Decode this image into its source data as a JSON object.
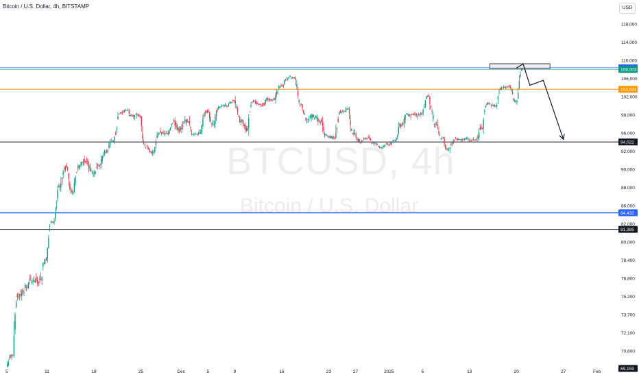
{
  "header": {
    "title": "Bitcoin / U.S. Dollar, 4h, BITSTAMP"
  },
  "currency": "USD",
  "watermark": {
    "symbol": "BTCUSD, 4h",
    "name": "Bitcoin / U.S. Dollar"
  },
  "colors": {
    "up": "#089981",
    "down": "#f23645",
    "support": "#131722",
    "resistance_blue": "#2962ff",
    "orange": "#ff9800"
  },
  "chart_data": {
    "type": "candlestick",
    "title": "Bitcoin / U.S. Dollar, 4h, BITSTAMP",
    "ylim": [
      69000,
      119200
    ],
    "y_ticks": [
      "118,000",
      "114,000",
      "110,000",
      "106,000",
      "102,000",
      "98,000",
      "96,000",
      "92,000",
      "90,000",
      "88,000",
      "86,000",
      "82,000",
      "80,000",
      "78,400",
      "76,800",
      "75,200",
      "73,700",
      "72,100",
      "70,600"
    ],
    "x_ticks": [
      {
        "label": "5",
        "date": "2024-11-05"
      },
      {
        "label": "11",
        "date": "2024-11-11"
      },
      {
        "label": "18",
        "date": "2024-11-18"
      },
      {
        "label": "25",
        "date": "2024-11-25"
      },
      {
        "label": "Dec",
        "date": "2024-12-01"
      },
      {
        "label": "5",
        "date": "2024-12-05"
      },
      {
        "label": "9",
        "date": "2024-12-09"
      },
      {
        "label": "16",
        "date": "2024-12-16"
      },
      {
        "label": "23",
        "date": "2024-12-23"
      },
      {
        "label": "27",
        "date": "2024-12-27"
      },
      {
        "label": "2025",
        "date": "2025-01-01"
      },
      {
        "label": "6",
        "date": "2025-01-06"
      },
      {
        "label": "13",
        "date": "2025-01-13"
      },
      {
        "label": "20",
        "date": "2025-01-20"
      },
      {
        "label": "27",
        "date": "2025-01-27"
      },
      {
        "label": "Feb",
        "date": "2025-02-01"
      }
    ],
    "x_range": [
      "2024-11-04",
      "2025-02-04"
    ],
    "horizontal_lines": [
      {
        "price": 108364,
        "label": "108,364",
        "color": "#2962ff",
        "style": "light"
      },
      {
        "price": 108003,
        "label": "108,003",
        "color": "#089981",
        "style": "light"
      },
      {
        "price": 103624,
        "label": "103,624",
        "color": "#ff9800",
        "style": "normal"
      },
      {
        "price": 94022,
        "label": "94,022",
        "color": "#131722",
        "style": "normal"
      },
      {
        "price": 84432,
        "label": "84,432",
        "color": "#2962ff",
        "style": "bold"
      },
      {
        "price": 81385,
        "label": "81,385",
        "color": "#131722",
        "style": "normal"
      },
      {
        "price": 69159,
        "label": "69,159",
        "color": "#131722",
        "style": "none"
      }
    ],
    "resistance_zone": {
      "date_from": "2025-01-16",
      "date_to": "2025-01-25",
      "price_low": 108200,
      "price_high": 109250
    },
    "projection": {
      "points": [
        {
          "date": "2025-01-20",
          "price": 108300
        },
        {
          "date": "2025-01-21",
          "price": 109200
        },
        {
          "date": "2025-01-22",
          "price": 104500
        },
        {
          "date": "2025-01-24",
          "price": 105600
        },
        {
          "date": "2025-01-27",
          "price": 94600
        }
      ]
    },
    "series": [
      {
        "date": "2024-11-05",
        "close": 70200
      },
      {
        "date": "2024-11-06",
        "close": 75400
      },
      {
        "date": "2024-11-07",
        "close": 76000
      },
      {
        "date": "2024-11-08",
        "close": 76600
      },
      {
        "date": "2024-11-09",
        "close": 76700
      },
      {
        "date": "2024-11-10",
        "close": 78600
      },
      {
        "date": "2024-11-11",
        "close": 82500
      },
      {
        "date": "2024-11-12",
        "close": 88000
      },
      {
        "date": "2024-11-13",
        "close": 90200
      },
      {
        "date": "2024-11-14",
        "close": 87500
      },
      {
        "date": "2024-11-15",
        "close": 90500
      },
      {
        "date": "2024-11-16",
        "close": 91000
      },
      {
        "date": "2024-11-17",
        "close": 89500
      },
      {
        "date": "2024-11-18",
        "close": 90500
      },
      {
        "date": "2024-11-19",
        "close": 92200
      },
      {
        "date": "2024-11-20",
        "close": 94300
      },
      {
        "date": "2024-11-21",
        "close": 98500
      },
      {
        "date": "2024-11-22",
        "close": 99000
      },
      {
        "date": "2024-11-23",
        "close": 97800
      },
      {
        "date": "2024-11-24",
        "close": 97800
      },
      {
        "date": "2024-11-25",
        "close": 93000
      },
      {
        "date": "2024-11-26",
        "close": 91900
      },
      {
        "date": "2024-11-27",
        "close": 96000
      },
      {
        "date": "2024-11-28",
        "close": 95700
      },
      {
        "date": "2024-11-29",
        "close": 97400
      },
      {
        "date": "2024-11-30",
        "close": 96400
      },
      {
        "date": "2024-12-01",
        "close": 97200
      },
      {
        "date": "2024-12-02",
        "close": 95800
      },
      {
        "date": "2024-12-03",
        "close": 96000
      },
      {
        "date": "2024-12-04",
        "close": 98700
      },
      {
        "date": "2024-12-05",
        "close": 97000
      },
      {
        "date": "2024-12-06",
        "close": 99800
      },
      {
        "date": "2024-12-07",
        "close": 99900
      },
      {
        "date": "2024-12-08",
        "close": 101100
      },
      {
        "date": "2024-12-09",
        "close": 97300
      },
      {
        "date": "2024-12-10",
        "close": 96500
      },
      {
        "date": "2024-12-11",
        "close": 100900
      },
      {
        "date": "2024-12-12",
        "close": 100000
      },
      {
        "date": "2024-12-13",
        "close": 101400
      },
      {
        "date": "2024-12-14",
        "close": 101300
      },
      {
        "date": "2024-12-15",
        "close": 104400
      },
      {
        "date": "2024-12-16",
        "close": 106000
      },
      {
        "date": "2024-12-17",
        "close": 106100
      },
      {
        "date": "2024-12-18",
        "close": 100200
      },
      {
        "date": "2024-12-19",
        "close": 97500
      },
      {
        "date": "2024-12-20",
        "close": 97700
      },
      {
        "date": "2024-12-21",
        "close": 97200
      },
      {
        "date": "2024-12-22",
        "close": 95100
      },
      {
        "date": "2024-12-23",
        "close": 94900
      },
      {
        "date": "2024-12-24",
        "close": 98700
      },
      {
        "date": "2024-12-25",
        "close": 99400
      },
      {
        "date": "2024-12-26",
        "close": 95800
      },
      {
        "date": "2024-12-27",
        "close": 94200
      },
      {
        "date": "2024-12-28",
        "close": 95100
      },
      {
        "date": "2024-12-29",
        "close": 93700
      },
      {
        "date": "2024-12-30",
        "close": 92800
      },
      {
        "date": "2024-12-31",
        "close": 93400
      },
      {
        "date": "2025-01-01",
        "close": 94400
      },
      {
        "date": "2025-01-02",
        "close": 96900
      },
      {
        "date": "2025-01-03",
        "close": 98100
      },
      {
        "date": "2025-01-04",
        "close": 98200
      },
      {
        "date": "2025-01-05",
        "close": 98300
      },
      {
        "date": "2025-01-06",
        "close": 102100
      },
      {
        "date": "2025-01-07",
        "close": 96900
      },
      {
        "date": "2025-01-08",
        "close": 95000
      },
      {
        "date": "2025-01-09",
        "close": 92500
      },
      {
        "date": "2025-01-10",
        "close": 94700
      },
      {
        "date": "2025-01-11",
        "close": 94500
      },
      {
        "date": "2025-01-12",
        "close": 94500
      },
      {
        "date": "2025-01-13",
        "close": 94500
      },
      {
        "date": "2025-01-14",
        "close": 96500
      },
      {
        "date": "2025-01-15",
        "close": 100500
      },
      {
        "date": "2025-01-16",
        "close": 99900
      },
      {
        "date": "2025-01-17",
        "close": 104000
      },
      {
        "date": "2025-01-18",
        "close": 104200
      },
      {
        "date": "2025-01-19",
        "close": 101000
      },
      {
        "date": "2025-01-20",
        "close": 108000
      }
    ]
  }
}
